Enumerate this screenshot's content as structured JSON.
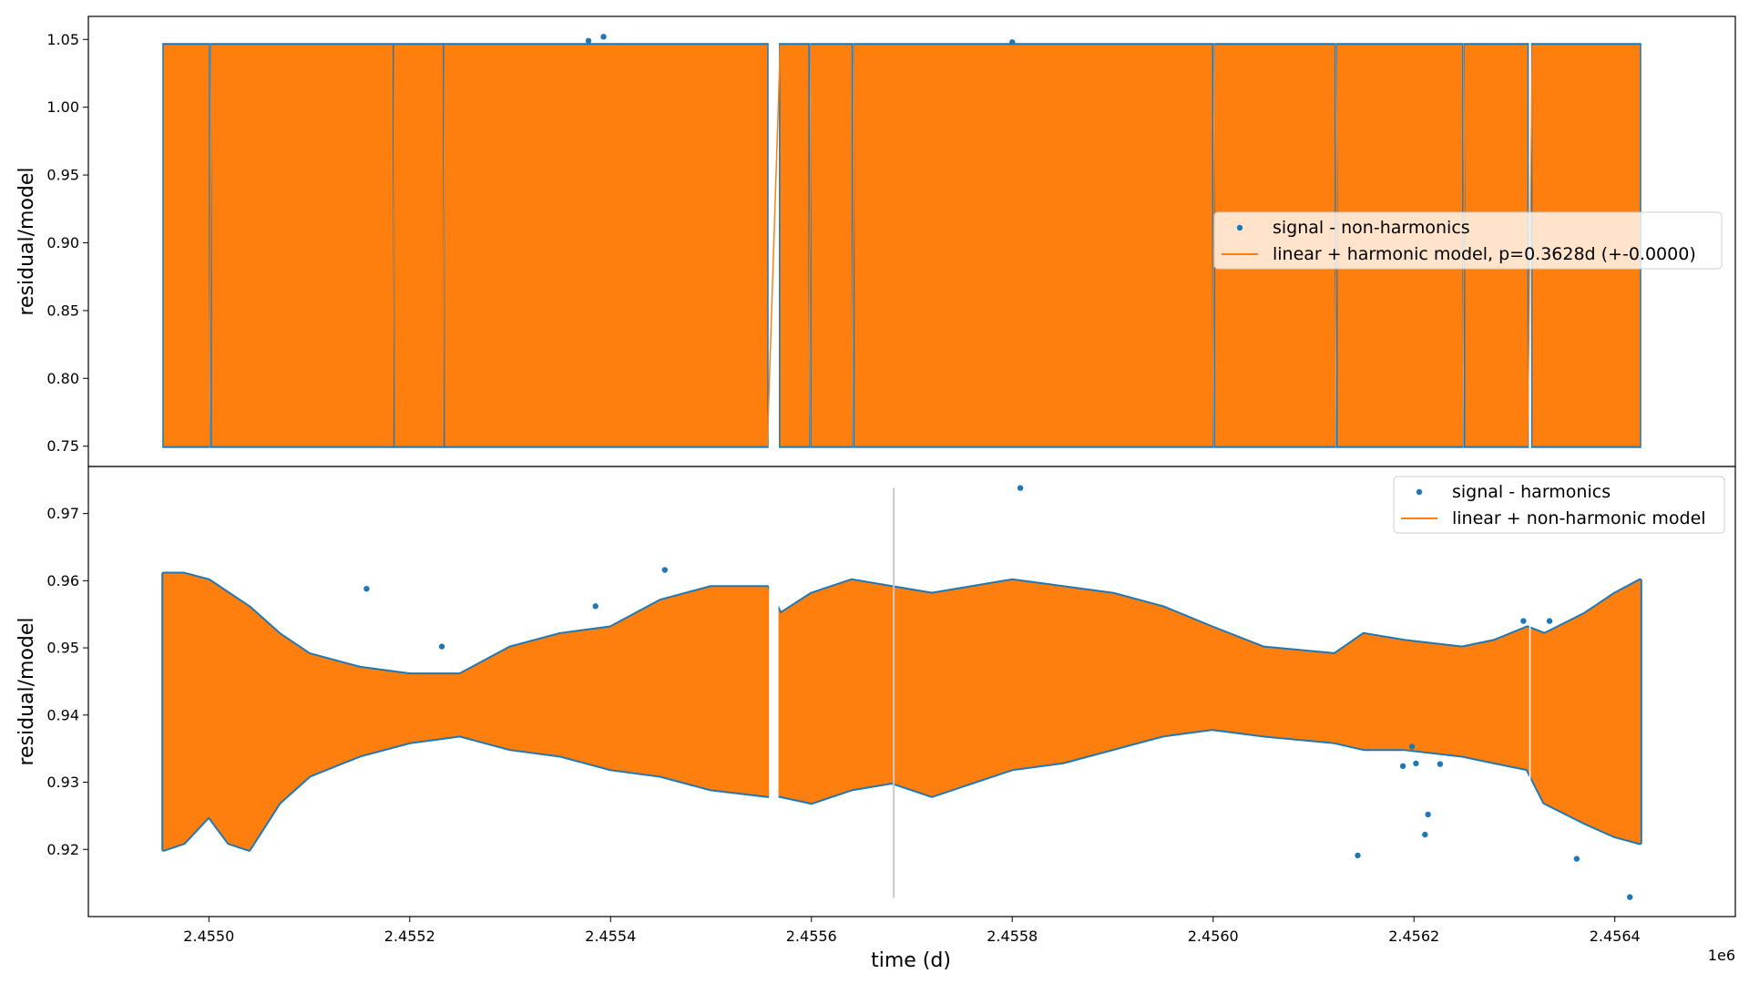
{
  "chart_data": [
    {
      "type": "scatter",
      "panel": "top",
      "title": "",
      "xlabel": "",
      "ylabel": "residual/model",
      "xlim": [
        2454880,
        2456520
      ],
      "ylim": [
        0.735,
        1.067
      ],
      "yticks": [
        "0.75",
        "0.80",
        "0.85",
        "0.90",
        "0.95",
        "1.00",
        "1.05"
      ],
      "legend_position": "center-right",
      "series": [
        {
          "name": "signal - non-harmonics",
          "kind": "points",
          "color": "#1f77b4"
        },
        {
          "name": "linear + harmonic model, p=0.3628d (+-0.0000)",
          "kind": "line",
          "color": "#ff7f0e"
        }
      ],
      "observing_segments": [
        [
          2454955,
          2455000
        ],
        [
          2455003,
          2455183
        ],
        [
          2455185,
          2455233
        ],
        [
          2455235,
          2455556
        ],
        [
          2455569,
          2455597
        ],
        [
          2455600,
          2455640
        ],
        [
          2455643,
          2455999
        ],
        [
          2456002,
          2456121
        ],
        [
          2456124,
          2456248
        ],
        [
          2456251,
          2456313
        ],
        [
          2456318,
          2456425
        ]
      ],
      "band_range": [
        0.75,
        1.046
      ],
      "outlier_points": [
        [
          2455378,
          1.049
        ],
        [
          2455393,
          1.052
        ],
        [
          2455800,
          1.048
        ]
      ]
    },
    {
      "type": "scatter",
      "panel": "bottom",
      "title": "",
      "xlabel": "time (d)",
      "ylabel": "residual/model",
      "x_offset_label": "1e6",
      "xlim": [
        2454880,
        2456520
      ],
      "ylim": [
        0.91,
        0.977
      ],
      "xticks": [
        2455000,
        2455200,
        2455400,
        2455600,
        2455800,
        2456000,
        2456200,
        2456400
      ],
      "xtick_labels": [
        "2.4550",
        "2.4552",
        "2.4554",
        "2.4556",
        "2.4558",
        "2.4560",
        "2.4562",
        "2.4564"
      ],
      "yticks": [
        "0.92",
        "0.93",
        "0.94",
        "0.95",
        "0.96",
        "0.97"
      ],
      "legend_position": "top-right",
      "series": [
        {
          "name": "signal - harmonics",
          "kind": "points",
          "color": "#1f77b4"
        },
        {
          "name": "linear + non-harmonic model",
          "kind": "line",
          "color": "#ff7f0e"
        }
      ],
      "envelope_x": [
        2454955,
        2454975,
        2455000,
        2455020,
        2455040,
        2455070,
        2455100,
        2455150,
        2455200,
        2455250,
        2455300,
        2455350,
        2455400,
        2455450,
        2455500,
        2455556,
        2455569,
        2455600,
        2455640,
        2455680,
        2455720,
        2455760,
        2455800,
        2455850,
        2455900,
        2455950,
        2455999,
        2456050,
        2456121,
        2456150,
        2456190,
        2456248,
        2456280,
        2456313,
        2456330,
        2456370,
        2456400,
        2456425
      ],
      "envelope_upper": [
        0.961,
        0.961,
        0.96,
        0.958,
        0.956,
        0.952,
        0.949,
        0.947,
        0.946,
        0.946,
        0.95,
        0.952,
        0.953,
        0.957,
        0.959,
        0.959,
        0.955,
        0.958,
        0.96,
        0.959,
        0.958,
        0.959,
        0.96,
        0.959,
        0.958,
        0.956,
        0.953,
        0.95,
        0.949,
        0.952,
        0.951,
        0.95,
        0.951,
        0.953,
        0.952,
        0.955,
        0.958,
        0.96
      ],
      "envelope_lower": [
        0.92,
        0.921,
        0.925,
        0.921,
        0.92,
        0.927,
        0.931,
        0.934,
        0.936,
        0.937,
        0.935,
        0.934,
        0.932,
        0.931,
        0.929,
        0.928,
        0.928,
        0.927,
        0.929,
        0.93,
        0.928,
        0.93,
        0.932,
        0.933,
        0.935,
        0.937,
        0.938,
        0.937,
        0.936,
        0.935,
        0.935,
        0.934,
        0.933,
        0.932,
        0.927,
        0.924,
        0.922,
        0.921
      ],
      "outlier_points": [
        [
          2455157,
          0.9588
        ],
        [
          2455232,
          0.9502
        ],
        [
          2455385,
          0.9562
        ],
        [
          2455454,
          0.9616
        ],
        [
          2455808,
          0.9738
        ],
        [
          2456144,
          0.9191
        ],
        [
          2456189,
          0.9324
        ],
        [
          2456198,
          0.9353
        ],
        [
          2456202,
          0.9328
        ],
        [
          2456211,
          0.9222
        ],
        [
          2456214,
          0.9252
        ],
        [
          2456226,
          0.9327
        ],
        [
          2456309,
          0.954
        ],
        [
          2456335,
          0.954
        ],
        [
          2456362,
          0.9186
        ],
        [
          2456415,
          0.9129
        ]
      ],
      "vertical_line_x": 2455682,
      "vertical_line_range": [
        0.9128,
        0.9738
      ]
    }
  ]
}
